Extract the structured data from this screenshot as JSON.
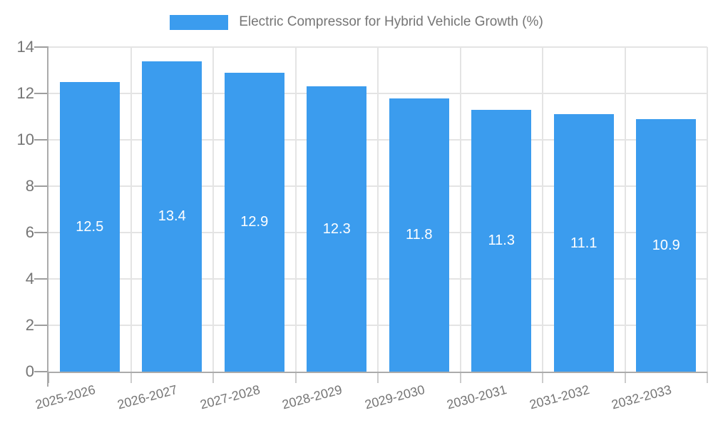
{
  "chart_data": {
    "type": "bar",
    "title": "Electric Compressor for Hybrid Vehicle Growth (%)",
    "legend_entries": [
      "Electric Compressor for Hybrid Vehicle Growth (%)"
    ],
    "legend_position": "top",
    "categories": [
      "2025-2026",
      "2026-2027",
      "2027-2028",
      "2028-2029",
      "2029-2030",
      "2030-2031",
      "2031-2032",
      "2032-2033"
    ],
    "series": [
      {
        "name": "Electric Compressor for Hybrid Vehicle Growth (%)",
        "values": [
          12.5,
          13.4,
          12.9,
          12.3,
          11.8,
          11.3,
          11.1,
          10.9
        ]
      }
    ],
    "bar_value_labels": [
      "12.5",
      "13.4",
      "12.9",
      "12.3",
      "11.8",
      "11.3",
      "11.1",
      "10.9"
    ],
    "xlabel": "",
    "ylabel": "",
    "ylim": [
      0,
      14
    ],
    "yticks": [
      0,
      2,
      4,
      6,
      8,
      10,
      12,
      14
    ],
    "grid": true,
    "x_tick_label_rotation_deg": -15
  },
  "colors": {
    "bar": "#3b9cee",
    "bar_value_text": "#ffffff",
    "gridline": "#e4e4e4",
    "axis_line": "#ababab",
    "boundary_tick": "#cccccc",
    "y_tick_mark": "#9e9e9e",
    "tick_text": "#757575",
    "legend_text": "#757575",
    "background": "#ffffff"
  }
}
